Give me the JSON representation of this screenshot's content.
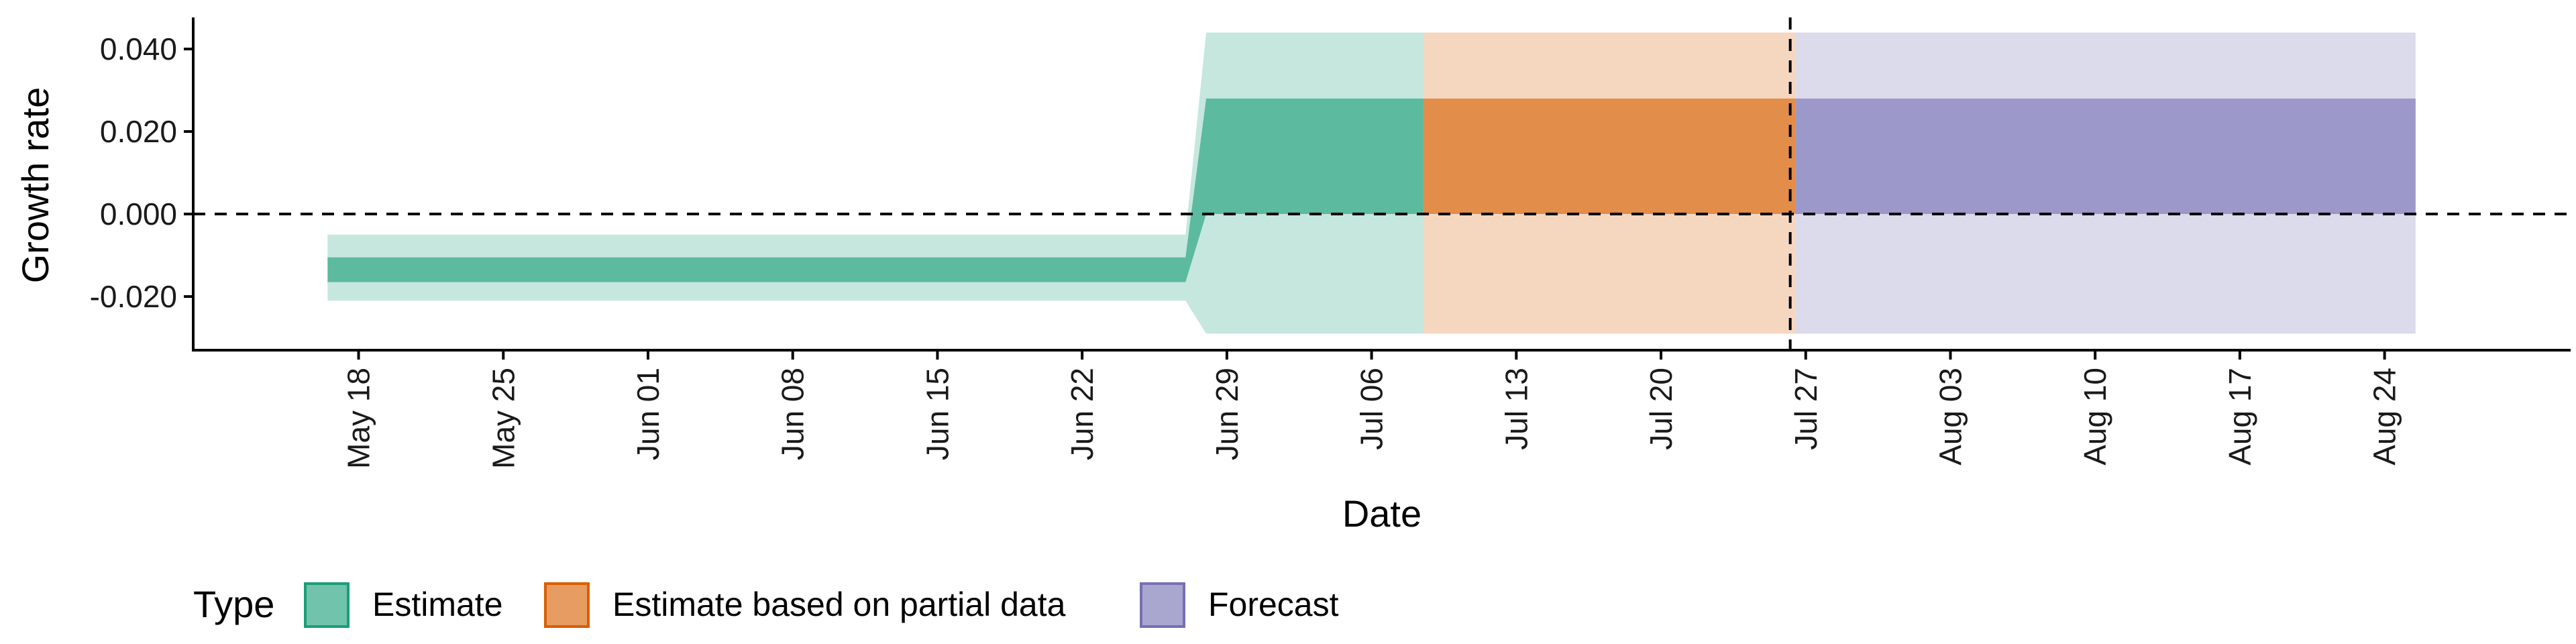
{
  "chart_data": {
    "type": "area",
    "title": "",
    "xlabel": "Date",
    "ylabel": "Growth rate",
    "x_ticks": [
      "May 18",
      "May 25",
      "Jun 01",
      "Jun 08",
      "Jun 15",
      "Jun 22",
      "Jun 29",
      "Jul 06",
      "Jul 13",
      "Jul 20",
      "Jul 27",
      "Aug 03",
      "Aug 10",
      "Aug 17",
      "Aug 24"
    ],
    "x_tick_dates": [
      "2020-05-18",
      "2020-05-25",
      "2020-06-01",
      "2020-06-08",
      "2020-06-15",
      "2020-06-22",
      "2020-06-29",
      "2020-07-06",
      "2020-07-13",
      "2020-07-20",
      "2020-07-27",
      "2020-08-03",
      "2020-08-10",
      "2020-08-17",
      "2020-08-24"
    ],
    "xlim": [
      "2020-05-10",
      "2020-09-02"
    ],
    "y_ticks": [
      0.04,
      0.02,
      0.0,
      -0.02
    ],
    "y_tick_labels": [
      "0.040",
      "0.020",
      "0.000",
      "-0.020"
    ],
    "ylim": [
      -0.033,
      0.047
    ],
    "grid": false,
    "hline": 0.0,
    "vline": "2020-07-26",
    "legend": {
      "title": "Type",
      "position": "bottom-left",
      "items": [
        {
          "label": "Estimate",
          "color": "#1b9e77"
        },
        {
          "label": "Estimate based on partial data",
          "color": "#d95f02"
        },
        {
          "label": "Forecast",
          "color": "#7570b3"
        }
      ]
    },
    "series": [
      {
        "name": "Estimate",
        "color": "#1b9e77",
        "points": [
          {
            "date": "2020-05-17",
            "lower_90": -0.021,
            "upper_90": -0.005,
            "lower_50": -0.0165,
            "upper_50": -0.0105
          },
          {
            "date": "2020-06-27",
            "lower_90": -0.021,
            "upper_90": -0.005,
            "lower_50": -0.0165,
            "upper_50": -0.0105
          },
          {
            "date": "2020-06-28",
            "lower_90": -0.029,
            "upper_90": 0.044,
            "lower_50": 0.0,
            "upper_50": 0.028
          },
          {
            "date": "2020-07-08",
            "lower_90": -0.029,
            "upper_90": 0.044,
            "lower_50": 0.0,
            "upper_50": 0.028
          }
        ]
      },
      {
        "name": "Estimate based on partial data",
        "color": "#d95f02",
        "points": [
          {
            "date": "2020-07-09",
            "lower_90": -0.029,
            "upper_90": 0.044,
            "lower_50": 0.0,
            "upper_50": 0.028
          },
          {
            "date": "2020-07-26",
            "lower_90": -0.029,
            "upper_90": 0.044,
            "lower_50": 0.0,
            "upper_50": 0.028
          }
        ]
      },
      {
        "name": "Forecast",
        "color": "#7570b3",
        "points": [
          {
            "date": "2020-07-27",
            "lower_90": -0.029,
            "upper_90": 0.044,
            "lower_50": 0.0,
            "upper_50": 0.028
          },
          {
            "date": "2020-08-25",
            "lower_90": -0.029,
            "upper_90": 0.044,
            "lower_50": 0.0,
            "upper_50": 0.028
          }
        ]
      }
    ]
  }
}
